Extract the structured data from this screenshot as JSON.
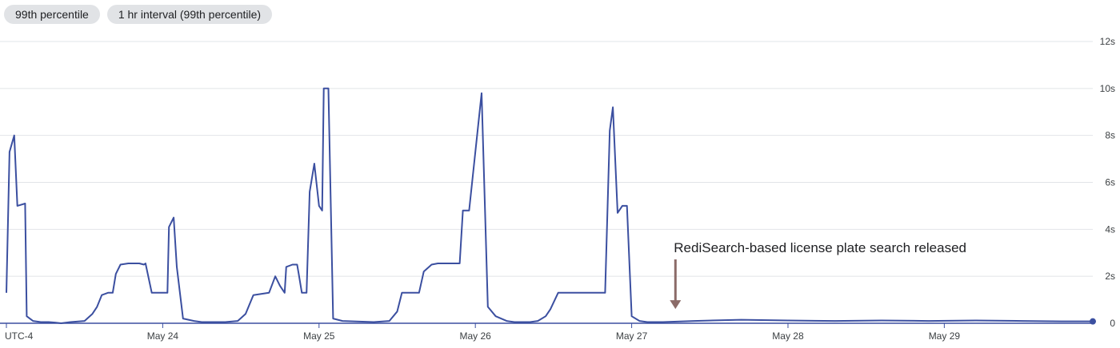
{
  "filters": [
    {
      "label": "99th percentile"
    },
    {
      "label": "1 hr interval (99th percentile)"
    }
  ],
  "timezone_label": "UTC-4",
  "colors": {
    "line": "#3b4fa0",
    "grid": "#e2e4e8",
    "axis": "#3b4fa0",
    "arrow": "#8b6b68",
    "chip_bg": "#e1e3e6"
  },
  "chart_data": {
    "type": "line",
    "title": "",
    "xlabel": "",
    "ylabel": "",
    "x_ticks": [
      "May 24",
      "May 25",
      "May 26",
      "May 27",
      "May 28",
      "May 29"
    ],
    "x_unit": "days since 12:00 AM May 23 (UTC-4)",
    "xlim": [
      0,
      6.95
    ],
    "ylim": [
      0,
      12
    ],
    "y_ticks": [
      {
        "value": 0,
        "label": "0"
      },
      {
        "value": 2,
        "label": "2s"
      },
      {
        "value": 4,
        "label": "4s"
      },
      {
        "value": 6,
        "label": "6s"
      },
      {
        "value": 8,
        "label": "8s"
      },
      {
        "value": 10,
        "label": "10s"
      },
      {
        "value": 12,
        "label": "12s"
      }
    ],
    "grid": true,
    "series": [
      {
        "name": "99th percentile",
        "points": [
          [
            0.0,
            1.3
          ],
          [
            0.02,
            7.3
          ],
          [
            0.05,
            8.0
          ],
          [
            0.07,
            5.0
          ],
          [
            0.12,
            5.1
          ],
          [
            0.13,
            0.3
          ],
          [
            0.17,
            0.1
          ],
          [
            0.22,
            0.05
          ],
          [
            0.27,
            0.05
          ],
          [
            0.31,
            0.03
          ],
          [
            0.35,
            0.0
          ],
          [
            0.41,
            0.05
          ],
          [
            0.5,
            0.1
          ],
          [
            0.55,
            0.4
          ],
          [
            0.58,
            0.7
          ],
          [
            0.61,
            1.2
          ],
          [
            0.65,
            1.3
          ],
          [
            0.68,
            1.3
          ],
          [
            0.7,
            2.1
          ],
          [
            0.73,
            2.5
          ],
          [
            0.78,
            2.55
          ],
          [
            0.85,
            2.55
          ],
          [
            0.88,
            2.5
          ],
          [
            0.89,
            2.55
          ],
          [
            0.93,
            1.3
          ],
          [
            1.03,
            1.3
          ],
          [
            1.04,
            4.1
          ],
          [
            1.07,
            4.5
          ],
          [
            1.09,
            2.4
          ],
          [
            1.13,
            0.2
          ],
          [
            1.2,
            0.1
          ],
          [
            1.25,
            0.05
          ],
          [
            1.4,
            0.05
          ],
          [
            1.48,
            0.1
          ],
          [
            1.53,
            0.4
          ],
          [
            1.58,
            1.2
          ],
          [
            1.68,
            1.3
          ],
          [
            1.72,
            2.0
          ],
          [
            1.75,
            1.6
          ],
          [
            1.78,
            1.3
          ],
          [
            1.79,
            2.4
          ],
          [
            1.83,
            2.5
          ],
          [
            1.86,
            2.5
          ],
          [
            1.87,
            2.1
          ],
          [
            1.89,
            1.3
          ],
          [
            1.92,
            1.3
          ],
          [
            1.94,
            5.6
          ],
          [
            1.97,
            6.8
          ],
          [
            2.0,
            5.0
          ],
          [
            2.02,
            4.8
          ],
          [
            2.03,
            10.0
          ],
          [
            2.06,
            10.0
          ],
          [
            2.09,
            0.2
          ],
          [
            2.15,
            0.1
          ],
          [
            2.35,
            0.05
          ],
          [
            2.45,
            0.1
          ],
          [
            2.5,
            0.5
          ],
          [
            2.53,
            1.3
          ],
          [
            2.64,
            1.3
          ],
          [
            2.67,
            2.2
          ],
          [
            2.72,
            2.5
          ],
          [
            2.76,
            2.55
          ],
          [
            2.84,
            2.55
          ],
          [
            2.9,
            2.55
          ],
          [
            2.92,
            4.8
          ],
          [
            2.96,
            4.8
          ],
          [
            3.04,
            9.8
          ],
          [
            3.08,
            0.7
          ],
          [
            3.13,
            0.3
          ],
          [
            3.2,
            0.1
          ],
          [
            3.25,
            0.05
          ],
          [
            3.35,
            0.05
          ],
          [
            3.4,
            0.1
          ],
          [
            3.45,
            0.3
          ],
          [
            3.48,
            0.6
          ],
          [
            3.53,
            1.3
          ],
          [
            3.83,
            1.3
          ],
          [
            3.86,
            8.2
          ],
          [
            3.88,
            9.2
          ],
          [
            3.91,
            4.7
          ],
          [
            3.94,
            5.0
          ],
          [
            3.97,
            5.0
          ],
          [
            4.0,
            0.3
          ],
          [
            4.05,
            0.1
          ],
          [
            4.1,
            0.05
          ],
          [
            4.2,
            0.05
          ],
          [
            4.4,
            0.1
          ],
          [
            4.7,
            0.15
          ],
          [
            5.0,
            0.12
          ],
          [
            5.3,
            0.1
          ],
          [
            5.6,
            0.12
          ],
          [
            5.9,
            0.1
          ],
          [
            6.2,
            0.12
          ],
          [
            6.5,
            0.1
          ],
          [
            6.75,
            0.08
          ],
          [
            6.95,
            0.08
          ]
        ]
      }
    ],
    "annotations": [
      {
        "text": "RediSearch-based license plate search released",
        "x": 4.28,
        "y": 0.2
      }
    ],
    "legend": "none"
  }
}
